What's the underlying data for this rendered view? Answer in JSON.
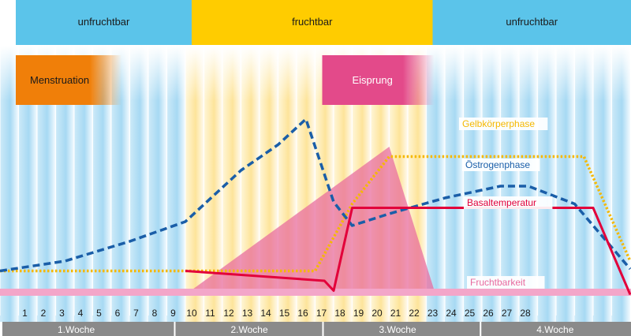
{
  "phases": [
    {
      "label": "unfruchtbar",
      "color": "#5bc4ea",
      "from_day": 0,
      "to_day": 10
    },
    {
      "label": "fruchtbar",
      "color": "#ffcc00",
      "from_day": 10,
      "to_day": 23
    },
    {
      "label": "unfruchtbar",
      "color": "#5bc4ea",
      "from_day": 23,
      "to_day": 34
    }
  ],
  "events": {
    "menstruation": {
      "label": "Menstruation",
      "color": "#f07f09",
      "from_day": 0,
      "to_day": 5.5
    },
    "eisprung": {
      "label": "Eisprung",
      "color": "#e34a8a",
      "from_day": 17,
      "to_day": 23
    }
  },
  "chart_data": {
    "type": "line",
    "title": "",
    "xlabel": "",
    "ylabel": "",
    "x_range": [
      0,
      34
    ],
    "y_range": [
      0,
      100
    ],
    "day_ticks": [
      "1",
      "2",
      "3",
      "4",
      "5",
      "6",
      "7",
      "8",
      "9",
      "10",
      "11",
      "12",
      "13",
      "14",
      "15",
      "16",
      "17",
      "18",
      "19",
      "20",
      "21",
      "22",
      "23",
      "24",
      "25",
      "26",
      "27",
      "28"
    ],
    "weeks": [
      {
        "label": "1.Woche",
        "from_day": 0,
        "to_day": 9
      },
      {
        "label": "2.Woche",
        "from_day": 9,
        "to_day": 17
      },
      {
        "label": "3.Woche",
        "from_day": 17,
        "to_day": 25.5
      },
      {
        "label": "4.Woche",
        "from_day": 25.5,
        "to_day": 34
      }
    ],
    "series": [
      {
        "name": "Gelbkörperphase",
        "style": "dotted",
        "color": "#f5b800",
        "points": [
          [
            0,
            13
          ],
          [
            17,
            13
          ],
          [
            19,
            47
          ],
          [
            21,
            71
          ],
          [
            31.5,
            71
          ],
          [
            34,
            18
          ]
        ]
      },
      {
        "name": "Östrogenphase",
        "style": "dashed",
        "color": "#1a5ea8",
        "points": [
          [
            0,
            13
          ],
          [
            3.5,
            18
          ],
          [
            7,
            28
          ],
          [
            10,
            38
          ],
          [
            13,
            64
          ],
          [
            15,
            77
          ],
          [
            16.5,
            90
          ],
          [
            18,
            48
          ],
          [
            19,
            36
          ],
          [
            21,
            42
          ],
          [
            24,
            50
          ],
          [
            27,
            56
          ],
          [
            28.5,
            56
          ],
          [
            31,
            47
          ],
          [
            34,
            14
          ]
        ]
      },
      {
        "name": "Basaltemperatur",
        "style": "solid",
        "color": "#e2003a",
        "points": [
          [
            10,
            13
          ],
          [
            17.5,
            8
          ],
          [
            18,
            3
          ],
          [
            19,
            45
          ],
          [
            32,
            45
          ],
          [
            34,
            1
          ]
        ]
      },
      {
        "name": "Fruchtbarkeit",
        "style": "area",
        "color": "#e86a9e",
        "points": [
          [
            10,
            1
          ],
          [
            21,
            76
          ],
          [
            23.5,
            1
          ]
        ]
      }
    ]
  }
}
